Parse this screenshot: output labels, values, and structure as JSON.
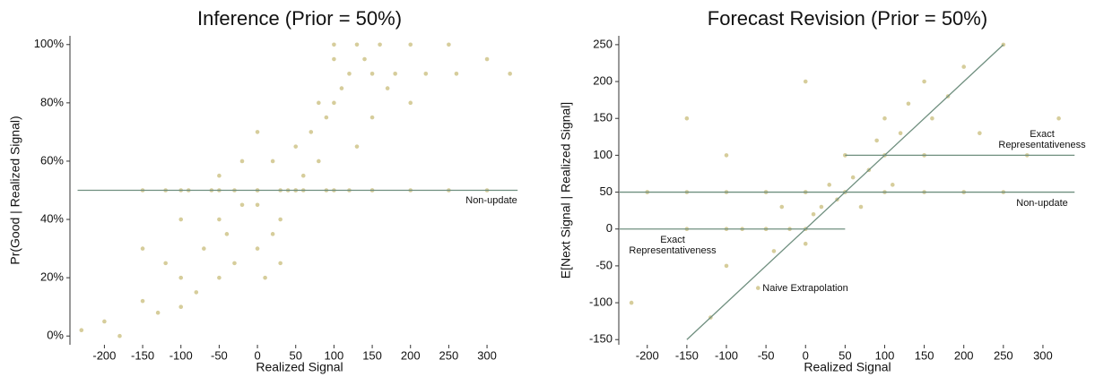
{
  "chart_data": [
    {
      "type": "scatter",
      "title": "Inference (Prior = 50%)",
      "x_label": "Realized Signal",
      "y_label": "Pr(Good | Realized Signal)",
      "color": "#d6cd9b",
      "line_color": "#6f8f7f",
      "xlim": [
        -245,
        355
      ],
      "ylim": [
        -3,
        103
      ],
      "xticks": [
        -200,
        -150,
        -100,
        -50,
        0,
        50,
        100,
        150,
        200,
        250,
        300
      ],
      "yticks": [
        {
          "value": 0,
          "label": "0%"
        },
        {
          "value": 20,
          "label": "20%"
        },
        {
          "value": 40,
          "label": "40%"
        },
        {
          "value": 60,
          "label": "60%"
        },
        {
          "value": 80,
          "label": "80%"
        },
        {
          "value": 100,
          "label": "100%"
        }
      ],
      "x": [
        -230,
        -200,
        -180,
        -150,
        -150,
        -130,
        -120,
        -100,
        -100,
        -100,
        -80,
        -70,
        -50,
        -50,
        -50,
        -40,
        -30,
        -20,
        -20,
        0,
        0,
        0,
        10,
        20,
        20,
        30,
        30,
        40,
        50,
        50,
        60,
        70,
        80,
        80,
        90,
        100,
        100,
        100,
        110,
        120,
        130,
        130,
        140,
        150,
        150,
        160,
        170,
        180,
        200,
        200,
        220,
        250,
        260,
        300,
        330,
        -120,
        -90,
        -60,
        -30,
        0,
        30,
        60,
        90,
        120,
        150,
        -150,
        -100,
        -50,
        0,
        50,
        100,
        150,
        200,
        250,
        300
      ],
      "y": [
        2,
        5,
        0,
        12,
        30,
        8,
        25,
        10,
        20,
        40,
        15,
        30,
        20,
        40,
        55,
        35,
        25,
        45,
        60,
        30,
        45,
        70,
        20,
        35,
        60,
        40,
        25,
        50,
        50,
        65,
        55,
        70,
        60,
        80,
        75,
        80,
        95,
        100,
        85,
        90,
        100,
        65,
        95,
        90,
        75,
        100,
        85,
        90,
        80,
        100,
        90,
        100,
        90,
        95,
        90,
        50,
        50,
        50,
        50,
        50,
        50,
        50,
        50,
        50,
        50,
        50,
        50,
        50,
        50,
        50,
        50,
        50,
        50,
        50,
        50
      ],
      "lines": [
        {
          "x": [
            -235,
            340
          ],
          "y": [
            50,
            50
          ],
          "label_lines": [
            "Non-update"
          ]
        }
      ]
    },
    {
      "type": "scatter",
      "title": "Forecast Revision (Prior = 50%)",
      "x_label": "Realized Signal",
      "y_label": "E[Next Signal | Realized Signal]",
      "color": "#d6cd9b",
      "line_color": "#6f8f7f",
      "xlim": [
        -236,
        342
      ],
      "ylim": [
        -157,
        262
      ],
      "xticks": [
        -200,
        -150,
        -100,
        -50,
        0,
        50,
        100,
        150,
        200,
        250,
        300
      ],
      "yticks": [
        -150,
        -100,
        -50,
        0,
        50,
        100,
        150,
        200,
        250
      ],
      "x": [
        -220,
        -200,
        -150,
        -150,
        -120,
        -100,
        -100,
        -80,
        -60,
        -50,
        -50,
        -40,
        -30,
        -20,
        0,
        0,
        0,
        10,
        20,
        30,
        40,
        50,
        50,
        60,
        70,
        80,
        90,
        100,
        100,
        110,
        120,
        130,
        150,
        150,
        160,
        180,
        200,
        200,
        220,
        250,
        280,
        320,
        -200,
        -150,
        -100,
        -50,
        0,
        50,
        100,
        150,
        200,
        250,
        -100,
        -50,
        0,
        50,
        100,
        150
      ],
      "y": [
        -100,
        50,
        150,
        0,
        -120,
        -50,
        100,
        0,
        -80,
        0,
        50,
        -30,
        30,
        0,
        -20,
        50,
        200,
        20,
        30,
        60,
        40,
        50,
        100,
        70,
        30,
        80,
        120,
        100,
        150,
        60,
        130,
        170,
        100,
        200,
        150,
        180,
        50,
        220,
        130,
        250,
        100,
        150,
        50,
        50,
        50,
        50,
        50,
        50,
        50,
        50,
        50,
        50,
        0,
        0,
        0,
        100,
        100,
        100
      ],
      "lines": [
        {
          "x": [
            -235,
            340
          ],
          "y": [
            50,
            50
          ],
          "label_lines": [
            "Non-update"
          ]
        },
        {
          "x": [
            50,
            340
          ],
          "y": [
            100,
            100
          ],
          "label_lines": [
            "Exact",
            "Representativeness"
          ]
        },
        {
          "x": [
            -235,
            50
          ],
          "y": [
            0,
            0
          ],
          "label_lines": [
            "Exact",
            "Representativeness"
          ]
        },
        {
          "x": [
            -150,
            250
          ],
          "y": [
            -150,
            250
          ],
          "label_lines": [
            "Naive Extrapolation"
          ]
        }
      ]
    }
  ]
}
